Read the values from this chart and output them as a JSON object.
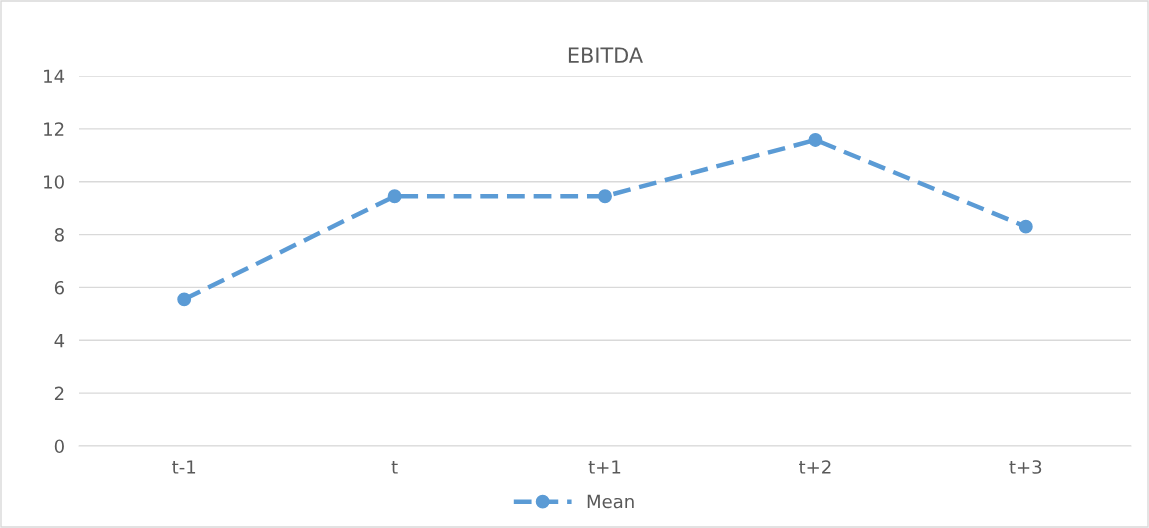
{
  "chart_data": {
    "type": "line",
    "title": "EBITDA",
    "categories": [
      "t-1",
      "t",
      "t+1",
      "t+2",
      "t+3"
    ],
    "series": [
      {
        "name": "Mean",
        "color": "#5b9bd5",
        "values": [
          5.55,
          9.45,
          9.45,
          11.58,
          8.3
        ]
      }
    ],
    "ylim": [
      0,
      14
    ],
    "yticks": [
      0,
      2,
      4,
      6,
      8,
      10,
      12,
      14
    ],
    "grid": "y",
    "legend": "bottom",
    "marker": "circle",
    "line_style": "dashed"
  }
}
